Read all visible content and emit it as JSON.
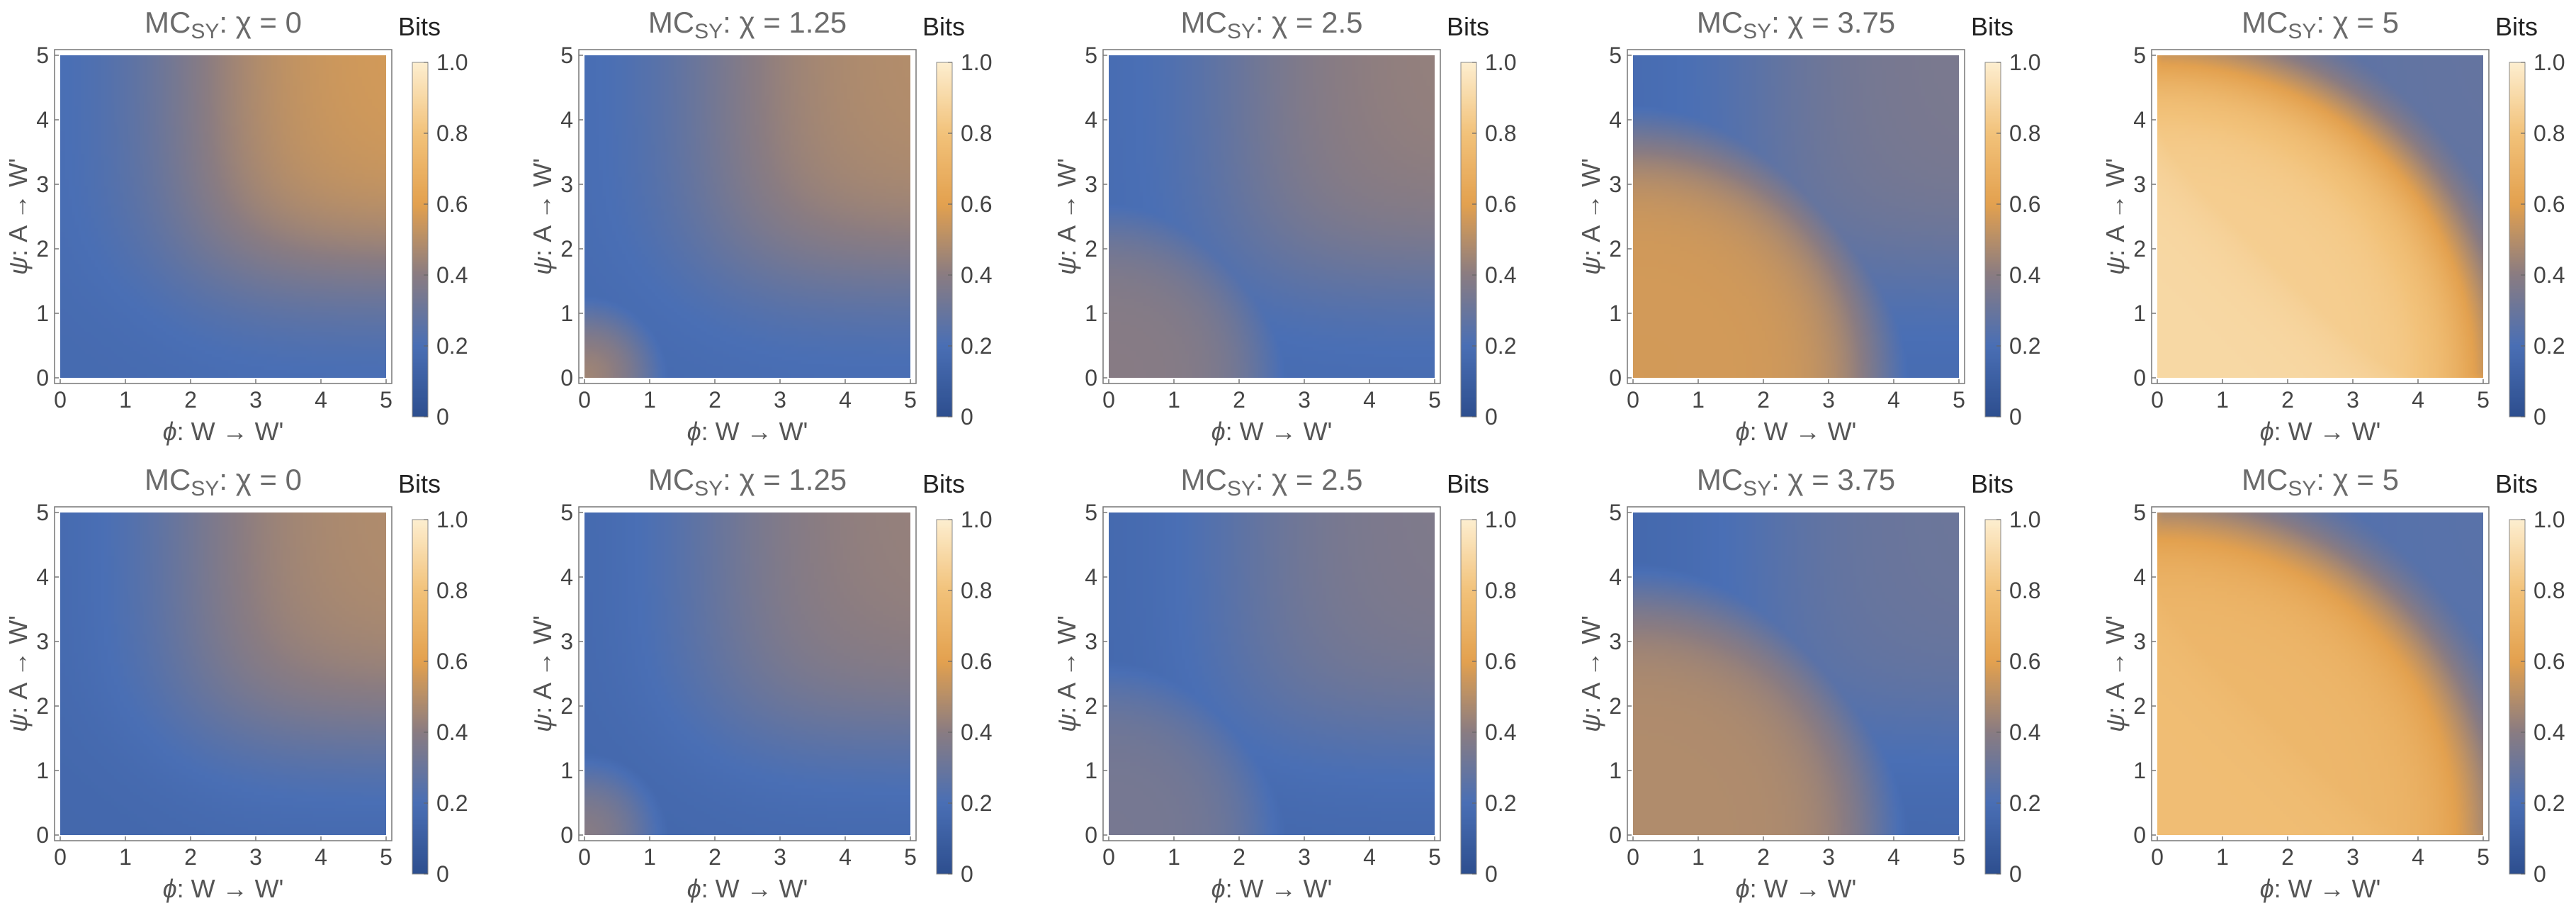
{
  "chart_data": {
    "type": "heatmap",
    "rows": 2,
    "cols": 5,
    "colormap": {
      "name": "blue-to-orange",
      "stops": [
        {
          "v": 0.0,
          "color": "#2e4f8f"
        },
        {
          "v": 0.2,
          "color": "#4a6fb5"
        },
        {
          "v": 0.4,
          "color": "#8a7c82"
        },
        {
          "v": 0.6,
          "color": "#e3a14f"
        },
        {
          "v": 0.8,
          "color": "#f2c27a"
        },
        {
          "v": 1.0,
          "color": "#fdeecf"
        }
      ]
    },
    "colorbar": {
      "title": "Bits",
      "ticks": [
        "0",
        "0.2",
        "0.4",
        "0.6",
        "0.8",
        "1.0"
      ],
      "range": [
        0,
        1
      ]
    },
    "xaxis": {
      "label_symbol": "ϕ",
      "label_text": ": W → W'",
      "ticks": [
        "0",
        "1",
        "2",
        "3",
        "4",
        "5"
      ],
      "range": [
        0,
        5
      ]
    },
    "yaxis": {
      "label_symbol": "ψ",
      "label_text": ": A → W'",
      "ticks": [
        "0",
        "1",
        "2",
        "3",
        "4",
        "5"
      ],
      "range": [
        0,
        5
      ]
    },
    "panels": [
      {
        "row": 0,
        "title_main": "MC",
        "title_sub": "SY",
        "title_rest": ": χ = 0",
        "chi": 0,
        "scale": 1.0
      },
      {
        "row": 0,
        "title_main": "MC",
        "title_sub": "SY",
        "title_rest": ": χ = 1.25",
        "chi": 1.25,
        "scale": 1.0
      },
      {
        "row": 0,
        "title_main": "MC",
        "title_sub": "SY",
        "title_rest": ": χ = 2.5",
        "chi": 2.5,
        "scale": 1.0
      },
      {
        "row": 0,
        "title_main": "MC",
        "title_sub": "SY",
        "title_rest": ": χ = 3.75",
        "chi": 3.75,
        "scale": 1.0
      },
      {
        "row": 0,
        "title_main": "MC",
        "title_sub": "SY",
        "title_rest": ": χ = 5",
        "chi": 5,
        "scale": 1.0
      },
      {
        "row": 1,
        "title_main": "MC",
        "title_sub": "SY",
        "title_rest": ": χ = 0",
        "chi": 0,
        "scale": 0.85
      },
      {
        "row": 1,
        "title_main": "MC",
        "title_sub": "SY",
        "title_rest": ": χ = 1.25",
        "chi": 1.25,
        "scale": 0.85
      },
      {
        "row": 1,
        "title_main": "MC",
        "title_sub": "SY",
        "title_rest": ": χ = 2.5",
        "chi": 2.5,
        "scale": 0.85
      },
      {
        "row": 1,
        "title_main": "MC",
        "title_sub": "SY",
        "title_rest": ": χ = 3.75",
        "chi": 3.75,
        "scale": 0.85
      },
      {
        "row": 1,
        "title_main": "MC",
        "title_sub": "SY",
        "title_rest": ": χ = 5",
        "chi": 5,
        "scale": 0.85
      }
    ]
  }
}
